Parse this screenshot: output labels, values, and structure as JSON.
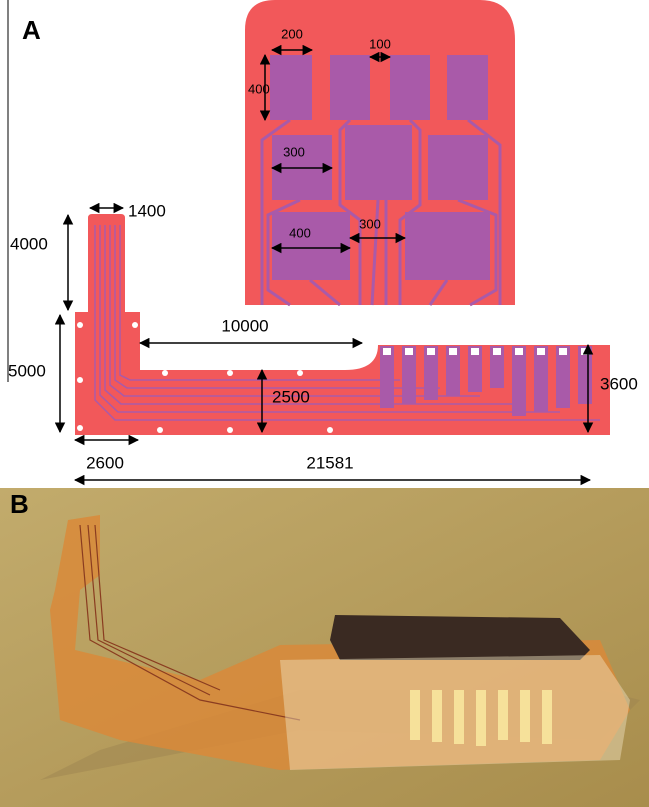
{
  "panel_a": {
    "label": "A",
    "inset_dimensions": [
      "200",
      "100",
      "400",
      "300",
      "400",
      "300"
    ],
    "device_dimensions": [
      "1400",
      "4000",
      "10000",
      "5000",
      "2500",
      "3600",
      "2600",
      "21581"
    ]
  },
  "panel_b": {
    "label": "B"
  }
}
